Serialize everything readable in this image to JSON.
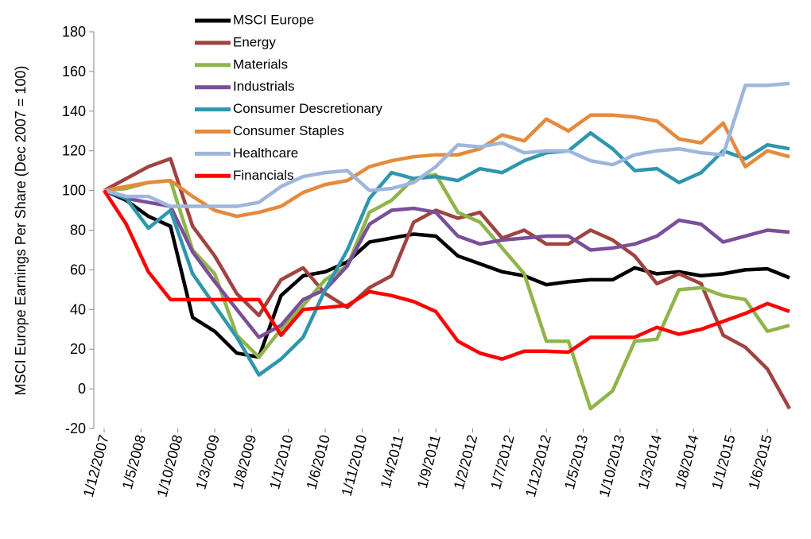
{
  "chart_data": {
    "type": "line",
    "y_label": "MSCI Europe Earnings Per Share (Dec 2007 = 100)",
    "x": [
      0,
      3,
      6,
      9,
      12,
      15,
      18,
      21,
      24,
      27,
      30,
      33,
      36,
      39,
      42,
      45,
      48,
      51,
      54,
      57,
      60,
      63,
      66,
      69,
      72,
      75,
      78,
      81,
      84,
      87,
      90,
      93
    ],
    "xlim": [
      0,
      93
    ],
    "xticks": [
      {
        "value": 0,
        "label": "1/12/2007"
      },
      {
        "value": 5,
        "label": "1/5/2008"
      },
      {
        "value": 10,
        "label": "1/10/2008"
      },
      {
        "value": 15,
        "label": "1/3/2009"
      },
      {
        "value": 20,
        "label": "1/8/2009"
      },
      {
        "value": 25,
        "label": "1/1/2010"
      },
      {
        "value": 30,
        "label": "1/6/2010"
      },
      {
        "value": 35,
        "label": "1/11/2010"
      },
      {
        "value": 40,
        "label": "1/4/2011"
      },
      {
        "value": 45,
        "label": "1/9/2011"
      },
      {
        "value": 50,
        "label": "1/2/2012"
      },
      {
        "value": 55,
        "label": "1/7/2012"
      },
      {
        "value": 60,
        "label": "1/12/2012"
      },
      {
        "value": 65,
        "label": "1/5/2013"
      },
      {
        "value": 70,
        "label": "1/10/2013"
      },
      {
        "value": 75,
        "label": "1/3/2014"
      },
      {
        "value": 80,
        "label": "1/8/2014"
      },
      {
        "value": 85,
        "label": "1/1/2015"
      },
      {
        "value": 90,
        "label": "1/6/2015"
      }
    ],
    "ylim": [
      -20,
      180
    ],
    "yticks": [
      -20,
      0,
      20,
      40,
      60,
      80,
      100,
      120,
      140,
      160,
      180
    ],
    "grid": false,
    "legend": "top-left",
    "series": [
      {
        "name": "MSCI Europe",
        "color": "#000000",
        "values": [
          100,
          95,
          87,
          82,
          36,
          29,
          18,
          16,
          47,
          57,
          59,
          64,
          74,
          76,
          78,
          77,
          67,
          63,
          59,
          57,
          52.5,
          54,
          55,
          55,
          61,
          58,
          59,
          57,
          58,
          60,
          60.5,
          56
        ]
      },
      {
        "name": "Energy",
        "color": "#a0433f",
        "values": [
          100,
          106,
          112,
          116,
          82,
          67,
          48,
          37,
          55,
          61,
          48,
          41,
          51,
          57,
          84,
          90,
          86,
          89,
          76,
          80,
          73,
          73,
          80,
          75,
          67,
          53,
          58,
          53,
          27,
          21,
          10,
          -10
        ]
      },
      {
        "name": "Materials",
        "color": "#8fb54a",
        "values": [
          100,
          101,
          104,
          105,
          70,
          58,
          27,
          16,
          30,
          42,
          55,
          62,
          89,
          95,
          106,
          108,
          89,
          84,
          71,
          58,
          24,
          24,
          -10,
          -1,
          24,
          25,
          50,
          51,
          47,
          45,
          29,
          32
        ]
      },
      {
        "name": "Industrials",
        "color": "#7a4f9a",
        "values": [
          100,
          96,
          94,
          92,
          69,
          54,
          40,
          26,
          32,
          45,
          50,
          62,
          83,
          90,
          91,
          89,
          77,
          73,
          75,
          76,
          77,
          77,
          70,
          71,
          73,
          77,
          85,
          83,
          74,
          77,
          80,
          79
        ]
      },
      {
        "name": "Consumer Descretionary",
        "color": "#2f96ad",
        "values": [
          100,
          96,
          81,
          90,
          58,
          42,
          26,
          7,
          15,
          26,
          50,
          70,
          96,
          109,
          106,
          107,
          105,
          111,
          109,
          115,
          119,
          120,
          129,
          121,
          110,
          111,
          104,
          109,
          120,
          116,
          123,
          121
        ]
      },
      {
        "name": "Consumer Staples",
        "color": "#e58a3c",
        "values": [
          100,
          102,
          104,
          105,
          97,
          90,
          87,
          89,
          92,
          99,
          103,
          105,
          112,
          115,
          117,
          118,
          118,
          121,
          128,
          125,
          136,
          130,
          138,
          138,
          137,
          135,
          126,
          124,
          134,
          112,
          120,
          117
        ]
      },
      {
        "name": "Healthcare",
        "color": "#9fb6dc",
        "values": [
          100,
          97,
          97,
          92,
          92,
          92,
          92,
          94,
          102,
          107,
          109,
          110,
          100,
          101,
          104,
          112,
          123,
          122,
          124,
          119,
          120,
          120,
          115,
          113,
          118,
          120,
          121,
          119,
          118,
          153,
          153,
          154
        ]
      },
      {
        "name": "Financials",
        "color": "#ff0000",
        "values": [
          100,
          83,
          59,
          45,
          45,
          45,
          45,
          45,
          27,
          40,
          41,
          42,
          49,
          47,
          44,
          39,
          24,
          18,
          15,
          19,
          19,
          18.5,
          26,
          26,
          26,
          31,
          27.5,
          30,
          34,
          38,
          43,
          39
        ]
      }
    ]
  }
}
